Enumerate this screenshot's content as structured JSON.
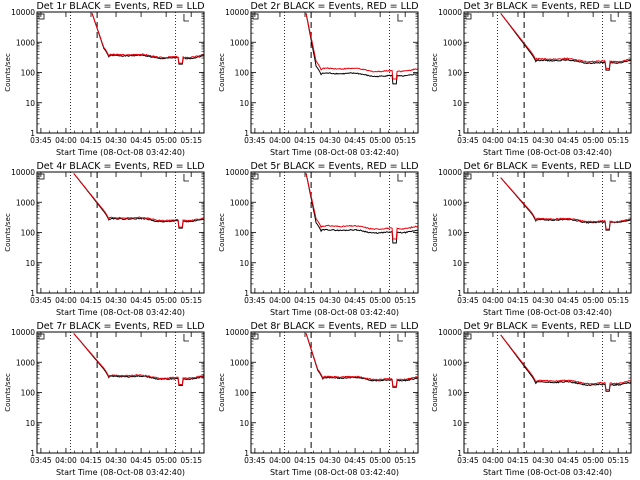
{
  "chart_data": {
    "type": "line",
    "scale": "log",
    "ylabel": "Counts/sec",
    "xlabel": "Start Time (08-Oct-08 03:42:40)",
    "x_ticks": [
      "03:45",
      "04:00",
      "04:15",
      "04:30",
      "04:45",
      "05:00",
      "05:15"
    ],
    "y_ticks": [
      "1",
      "10",
      "100",
      "1000",
      "10000"
    ],
    "ylim": [
      1,
      10000
    ],
    "xlim_minutes": [
      0,
      100
    ],
    "dotted_lines_minutes": [
      20,
      83
    ],
    "dashed_line_minutes": [
      36
    ],
    "series_names": [
      "Events",
      "LLD"
    ],
    "series_colors": {
      "Events": "#000000",
      "LLD": "#e8000b"
    },
    "panels": [
      {
        "title": "Det 1r BLACK = Events, RED = LLD",
        "drop_start_min": 33,
        "drop_start_val": 9000,
        "drop_end_min": 40,
        "level": 330,
        "ratio": 1.08,
        "dip_min": 86,
        "dip_val": 190
      },
      {
        "title": "Det 2r BLACK = Events, RED = LLD",
        "drop_start_min": 33,
        "drop_start_val": 9000,
        "drop_end_min": 39,
        "level": 85,
        "ratio": 1.45,
        "dip_min": 86,
        "dip_val": 42
      },
      {
        "title": "Det 3r BLACK = Events, RED = LLD",
        "drop_start_min": 22,
        "drop_start_val": 9000,
        "drop_end_min": 40,
        "level": 230,
        "ratio": 1.12,
        "dip_min": 86,
        "dip_val": 120
      },
      {
        "title": "Det 4r BLACK = Events, RED = LLD",
        "drop_start_min": 22,
        "drop_start_val": 9000,
        "drop_end_min": 40,
        "level": 260,
        "ratio": 1.08,
        "dip_min": 86,
        "dip_val": 140
      },
      {
        "title": "Det 5r BLACK = Events, RED = LLD",
        "drop_start_min": 33,
        "drop_start_val": 9000,
        "drop_end_min": 39,
        "level": 110,
        "ratio": 1.35,
        "dip_min": 86,
        "dip_val": 45
      },
      {
        "title": "Det 6r BLACK = Events, RED = LLD",
        "drop_start_min": 22,
        "drop_start_val": 6500,
        "drop_end_min": 40,
        "level": 240,
        "ratio": 1.08,
        "dip_min": 86,
        "dip_val": 120
      },
      {
        "title": "Det 7r BLACK = Events, RED = LLD",
        "drop_start_min": 22,
        "drop_start_val": 9000,
        "drop_end_min": 40,
        "level": 310,
        "ratio": 1.08,
        "dip_min": 86,
        "dip_val": 170
      },
      {
        "title": "Det 8r BLACK = Events, RED = LLD",
        "drop_start_min": 33,
        "drop_start_val": 9000,
        "drop_end_min": 40,
        "level": 280,
        "ratio": 1.08,
        "dip_min": 86,
        "dip_val": 150
      },
      {
        "title": "Det 9r BLACK = Events, RED = LLD",
        "drop_start_min": 22,
        "drop_start_val": 8000,
        "drop_end_min": 40,
        "level": 200,
        "ratio": 1.12,
        "dip_min": 86,
        "dip_val": 110
      }
    ]
  }
}
